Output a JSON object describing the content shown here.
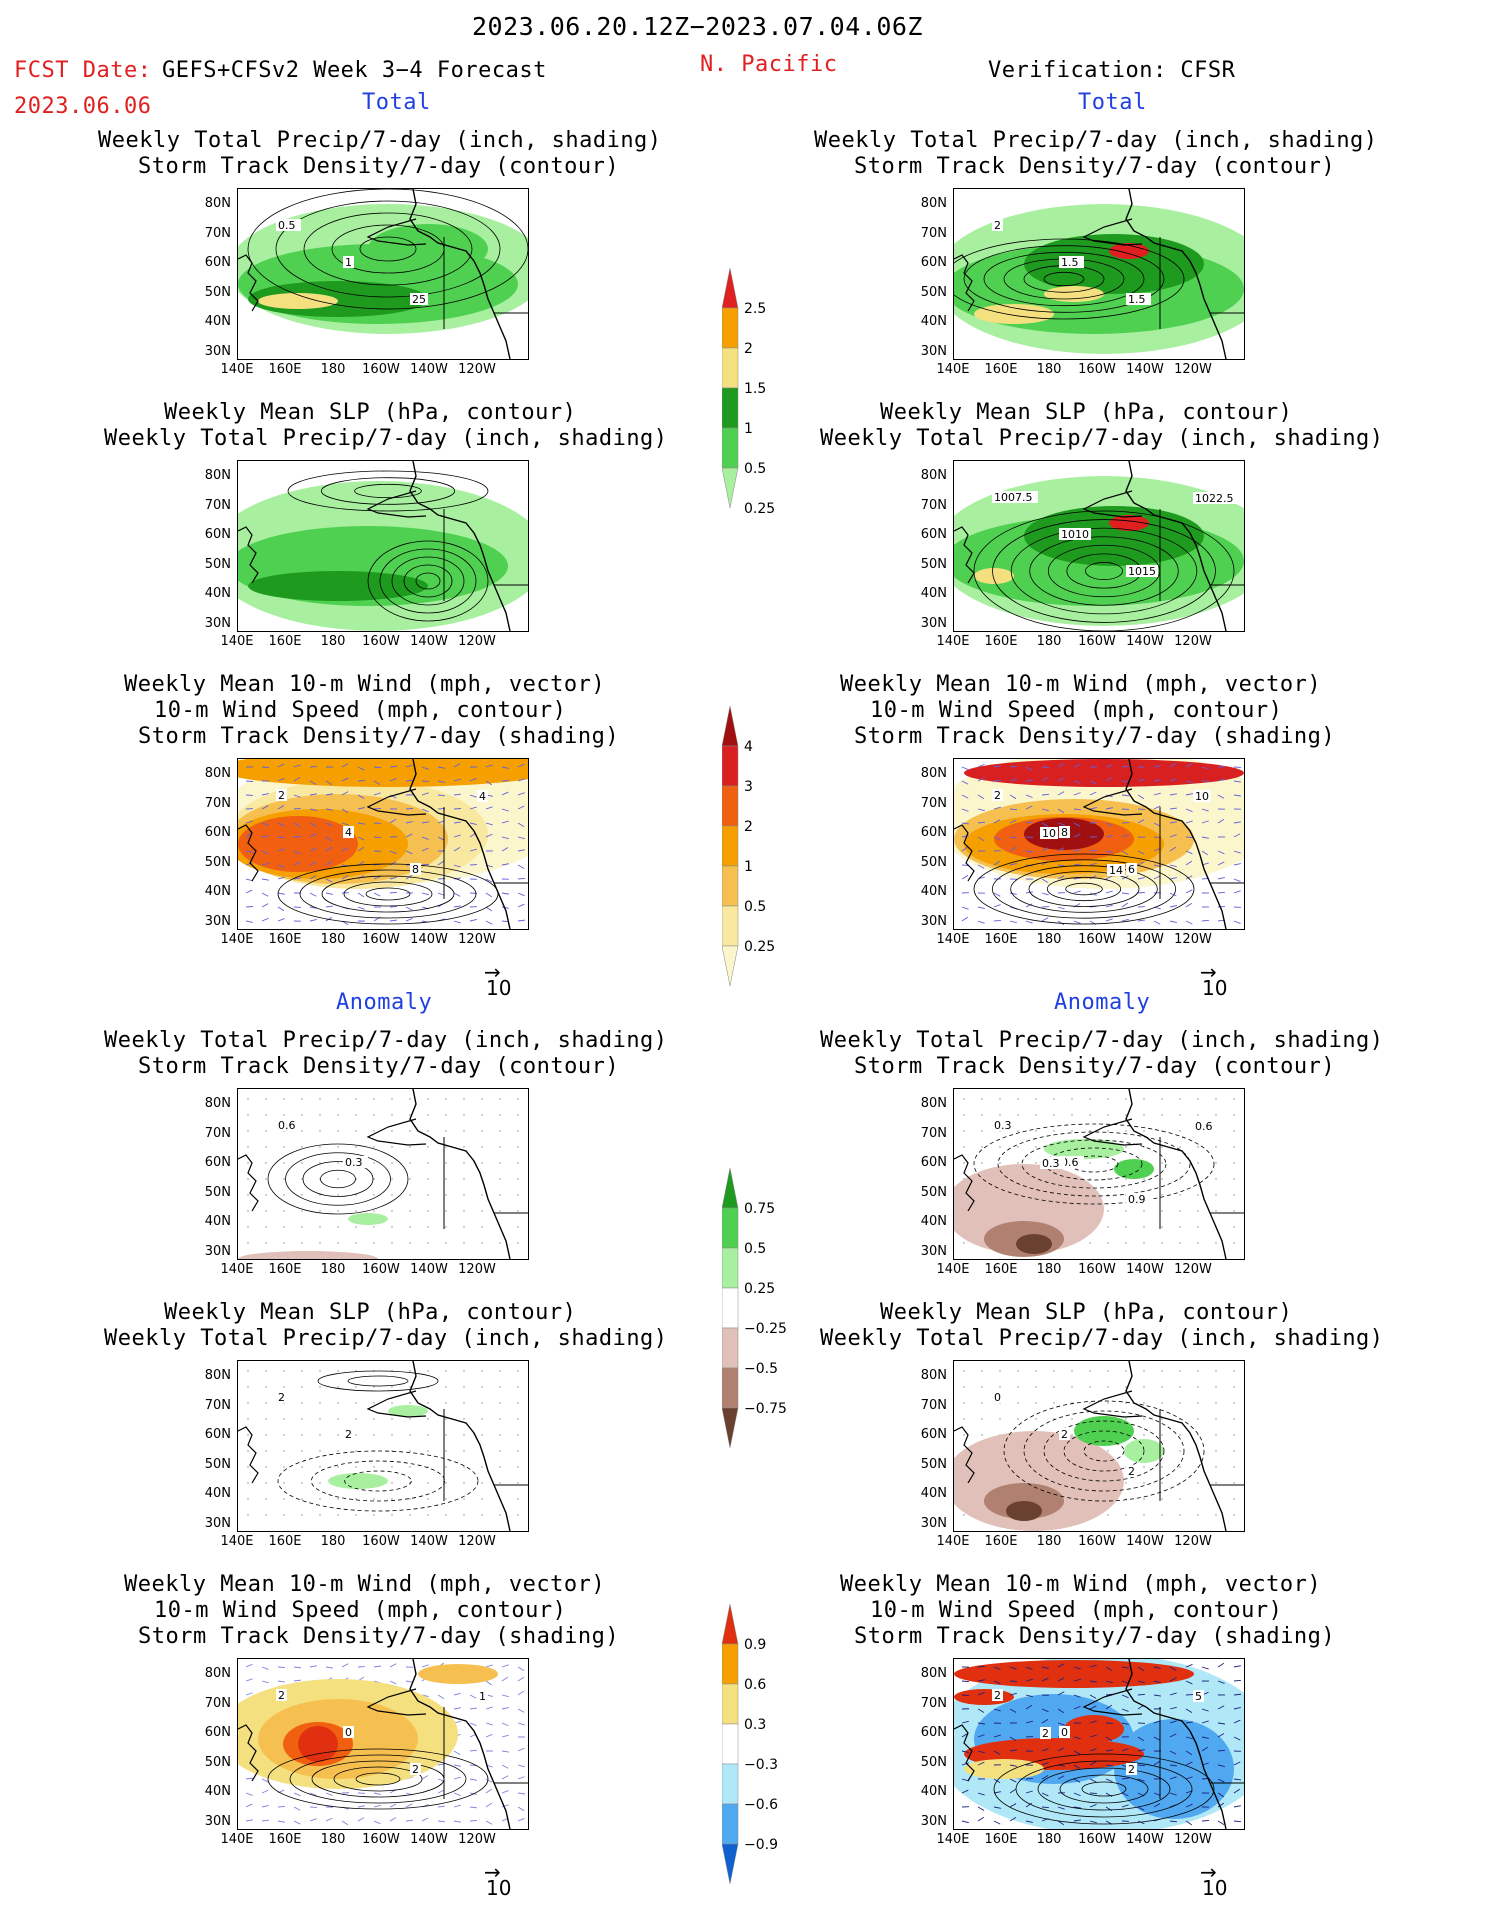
{
  "header": {
    "date_range": "2023.06.20.12Z−2023.07.04.06Z",
    "fcst_label": "FCST Date:",
    "model": "GEFS+CFSv2 Week 3−4 Forecast",
    "fcst_date": "2023.06.06",
    "region": "N. Pacific",
    "verification": "Verification: CFSR",
    "total_left": "Total",
    "total_right": "Total",
    "anomaly_left": "Anomaly",
    "anomaly_right": "Anomaly"
  },
  "titles": {
    "precip_track_1": "Weekly Total Precip/7-day (inch, shading)",
    "precip_track_2": "Storm Track Density/7-day (contour)",
    "slp_1": "Weekly Mean SLP (hPa, contour)",
    "slp_2": "Weekly Total Precip/7-day (inch, shading)",
    "wind_1": "Weekly Mean 10-m Wind (mph, vector)",
    "wind_2": "10-m Wind Speed (mph, contour)",
    "wind_3": "Storm Track Density/7-day (shading)"
  },
  "axes": {
    "lat_ticks": [
      "80N",
      "70N",
      "60N",
      "50N",
      "40N",
      "30N"
    ],
    "lon_ticks": [
      "140E",
      "160E",
      "180",
      "160W",
      "140W",
      "120W"
    ]
  },
  "vector_reference": "10",
  "colorbars": {
    "precip_total": {
      "labels": [
        "2.5",
        "2",
        "1.5",
        "1",
        "0.5",
        "0.25"
      ],
      "colors": [
        "#e02020",
        "#f5a000",
        "#f5e080",
        "#1e9a1e",
        "#50d050",
        "#a8f0a0"
      ]
    },
    "track_total": {
      "labels": [
        "4",
        "3",
        "2",
        "1",
        "0.5",
        "0.25"
      ],
      "colors": [
        "#a01010",
        "#d82020",
        "#f06010",
        "#f5a000",
        "#f5c050",
        "#f8e8a0",
        "#fcf6cc"
      ]
    },
    "precip_anom": {
      "labels": [
        "0.75",
        "0.5",
        "0.25",
        "−0.25",
        "−0.5",
        "−0.75"
      ],
      "colors": [
        "#1e9a1e",
        "#50d050",
        "#a8f0a0",
        "#ffffff",
        "#e0c0b8",
        "#b08070",
        "#6a4030"
      ]
    },
    "track_anom": {
      "labels": [
        "0.9",
        "0.6",
        "0.3",
        "−0.3",
        "−0.6",
        "−0.9"
      ],
      "colors": [
        "#e03010",
        "#f5a000",
        "#f5e080",
        "#ffffff",
        "#b0e8f8",
        "#50a8f0",
        "#1060d0"
      ]
    }
  },
  "contour_labels": {
    "p1": [
      "0.5",
      "1",
      "25"
    ],
    "p2": [
      "2",
      "1.5",
      "1.5"
    ],
    "p4": [
      "1007.5",
      "1010",
      "1015",
      "1022.5"
    ],
    "p5": [
      "2",
      "4",
      "8",
      "4"
    ],
    "p6": [
      "2",
      "8",
      "6",
      "10",
      "10",
      "14"
    ],
    "p7": [
      "0.6",
      "0.3"
    ],
    "p8": [
      "0.3",
      "0.6",
      "0.9",
      "0.6",
      "0.3"
    ],
    "p9": [
      "2",
      "2"
    ],
    "p10": [
      "0",
      "2",
      "2"
    ],
    "p11": [
      "2",
      "0",
      "2",
      "1"
    ],
    "p12": [
      "2",
      "0",
      "2",
      "5",
      "2"
    ]
  }
}
